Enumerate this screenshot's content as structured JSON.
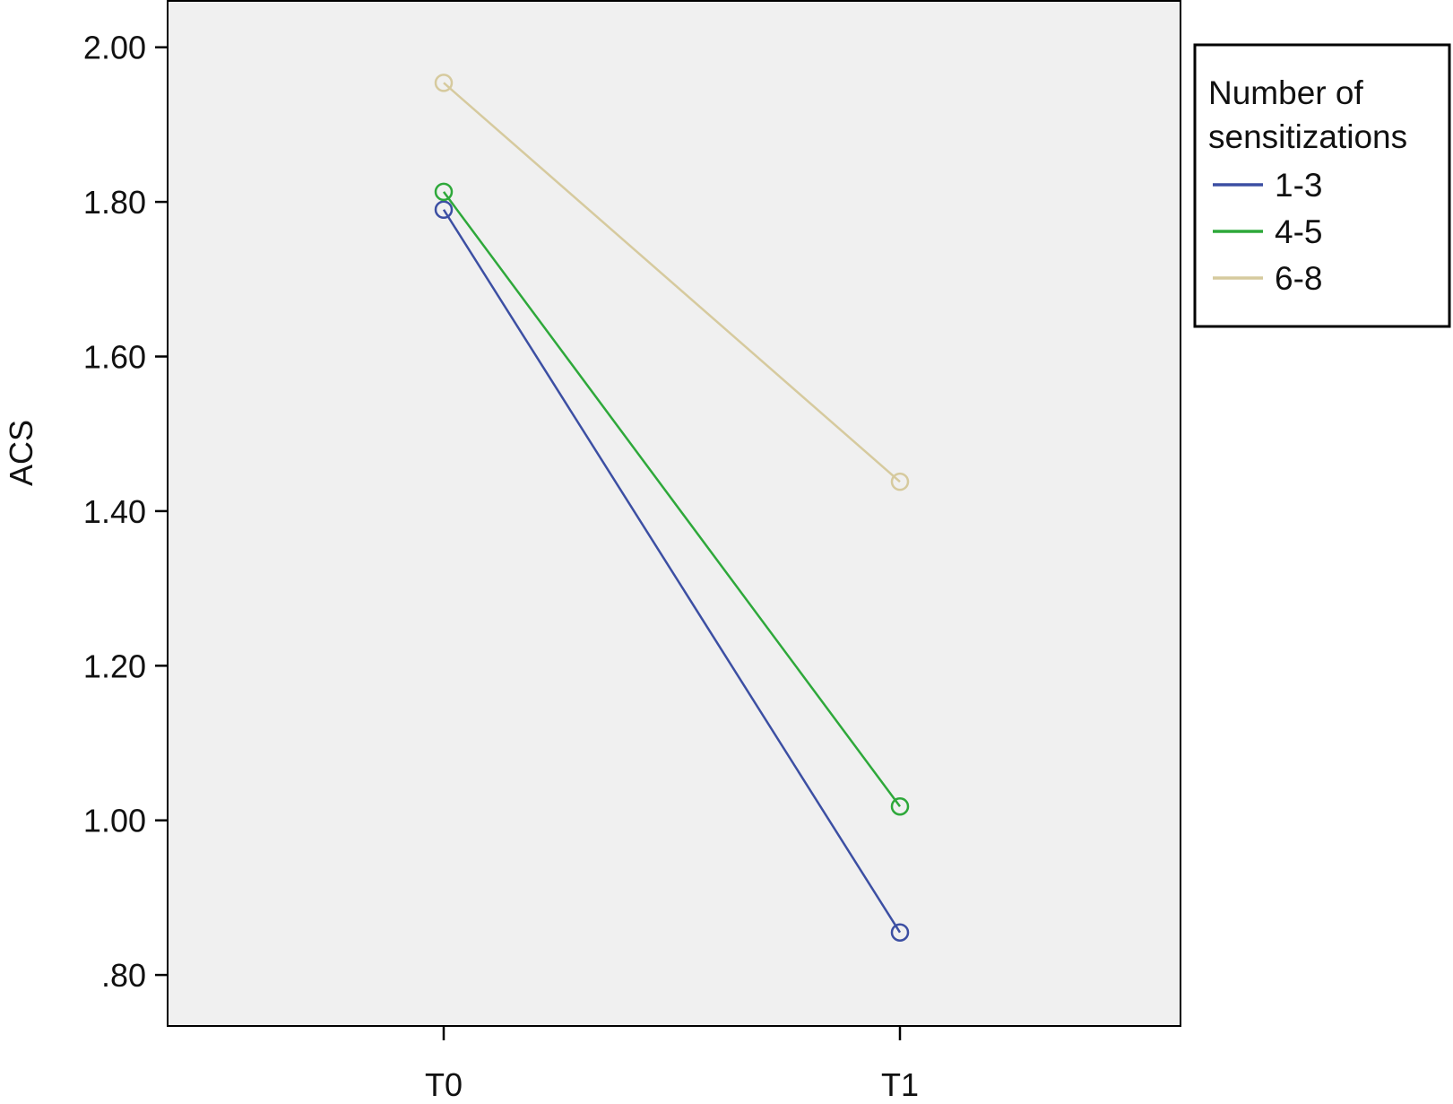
{
  "chart_data": {
    "type": "line",
    "title": "",
    "xlabel": "",
    "ylabel": "ACS",
    "categories": [
      "T0",
      "T1"
    ],
    "ylim": [
      0.734,
      2.06
    ],
    "y_ticks": [
      0.8,
      1.0,
      1.2,
      1.4,
      1.6,
      1.8,
      2.0
    ],
    "y_tick_labels": [
      ".80",
      "1.00",
      "1.20",
      "1.40",
      "1.60",
      "1.80",
      "2.00"
    ],
    "grid": false,
    "plot_background": "#f0f0f0",
    "legend": {
      "title_lines": [
        "Number of",
        "sensitizations"
      ],
      "placement": "top-right outside"
    },
    "series": [
      {
        "name": "1-3",
        "values": [
          1.79,
          0.855
        ],
        "color": "#3c4fa3",
        "marker": "open-circle"
      },
      {
        "name": "4-5",
        "values": [
          1.813,
          1.018
        ],
        "color": "#2ea83a",
        "marker": "open-circle"
      },
      {
        "name": "6-8",
        "values": [
          1.954,
          1.438
        ],
        "color": "#d6ca9e",
        "marker": "open-circle"
      }
    ]
  }
}
